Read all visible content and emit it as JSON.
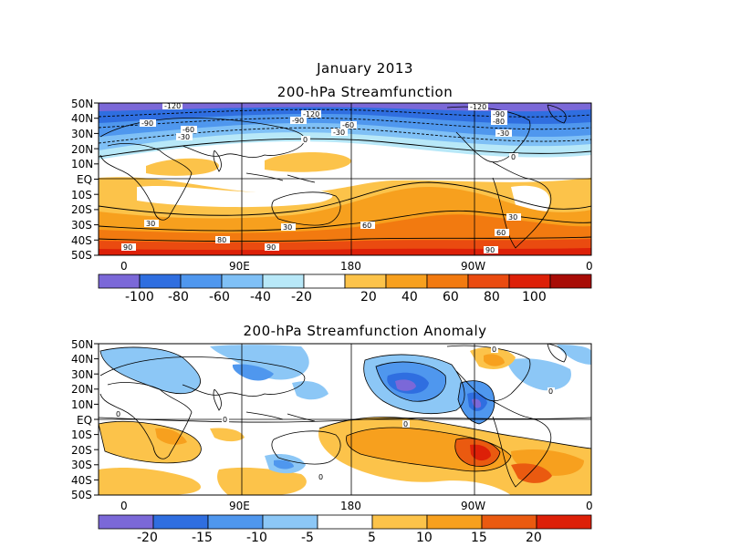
{
  "header": {
    "title": "January 2013",
    "subtitle": "200-hPa Streamfunction"
  },
  "panel_top": {
    "title": "",
    "lat_labels": [
      "50N",
      "40N",
      "30N",
      "20N",
      "10N",
      "EQ",
      "10S",
      "20S",
      "30S",
      "40S",
      "50S"
    ],
    "lon_labels": [
      "0",
      "90E",
      "180",
      "90W",
      "0"
    ],
    "contour_labels": [
      "-120",
      "-90",
      "-60",
      "-30",
      "0",
      "-120",
      "-90",
      "-60",
      "-30",
      "-120",
      "-90",
      "-80",
      "-30",
      "0",
      "30",
      "60",
      "90",
      "80",
      "90",
      "30",
      "60",
      "90",
      "30"
    ],
    "colorbar": {
      "colors": [
        "#7b68d8",
        "#2f6ee0",
        "#4f97ee",
        "#7fc0f6",
        "#b8e8f8",
        "#ffffff",
        "#fcc34a",
        "#f7a01e",
        "#f27a10",
        "#ea4b10",
        "#dd2008",
        "#a80c06"
      ],
      "labels": [
        "-100",
        "-80",
        "-60",
        "-40",
        "-20",
        "20",
        "40",
        "60",
        "80",
        "100"
      ]
    }
  },
  "panel_bottom": {
    "title": "200-hPa Streamfunction Anomaly",
    "lat_labels": [
      "50N",
      "40N",
      "30N",
      "20N",
      "10N",
      "EQ",
      "10S",
      "20S",
      "30S",
      "40S",
      "50S"
    ],
    "lon_labels": [
      "0",
      "90E",
      "180",
      "90W",
      "0"
    ],
    "contour_labels": [
      "0",
      "0",
      "0",
      "0",
      "0",
      "0"
    ],
    "colorbar": {
      "colors": [
        "#7b68d8",
        "#2f6ee0",
        "#4f97ee",
        "#8cc7f6",
        "#ffffff",
        "#fcc34a",
        "#f7a01e",
        "#ea5a10",
        "#dd2008"
      ],
      "labels": [
        "-20",
        "-15",
        "-10",
        "-5",
        "5",
        "10",
        "15",
        "20"
      ]
    }
  }
}
